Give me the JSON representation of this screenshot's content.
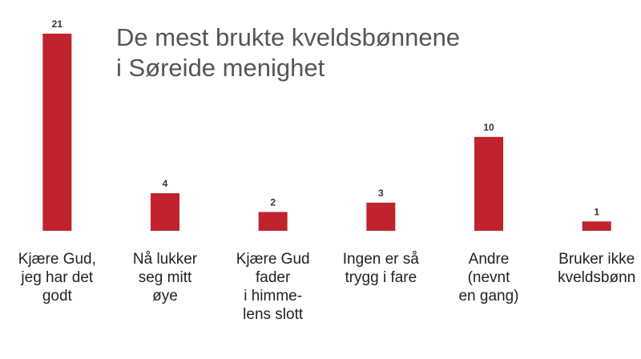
{
  "chart_data": {
    "type": "bar",
    "title": "De mest brukte kveldsbønnene\ni Søreide menighet",
    "categories": [
      "Kjære Gud,\njeg har det\ngodt",
      "Nå lukker\nseg mitt\nøye",
      "Kjære Gud\nfader\ni himme-\nlens slott",
      "Ingen er så\ntrygg i fare",
      "Andre\n(nevnt\nen gang)",
      "Bruker ikke\nkveldsbønn"
    ],
    "values": [
      21,
      4,
      2,
      3,
      10,
      1
    ],
    "color": "#c0232b"
  }
}
